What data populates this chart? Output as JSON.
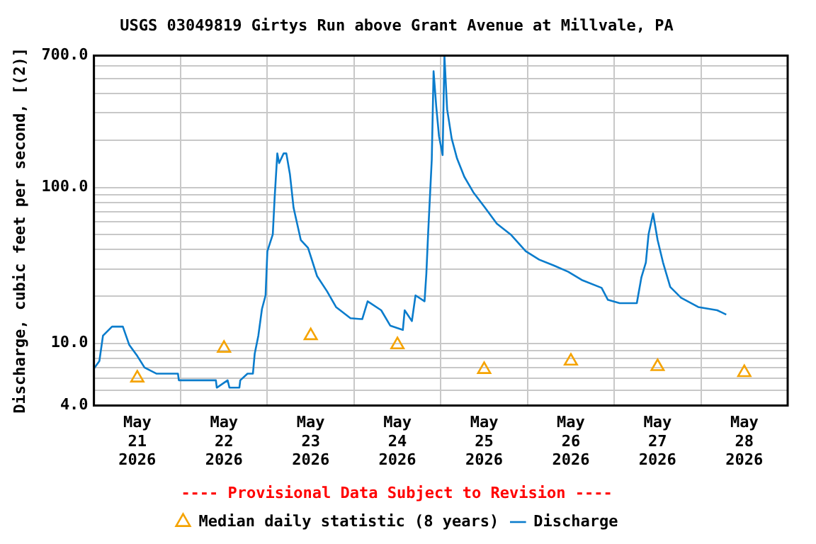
{
  "chart_data": {
    "type": "line",
    "title": "USGS 03049819 Girtys Run above Grant Avenue at Millvale, PA",
    "ylabel": "Discharge, cubic feet per second, [(2)]",
    "annotations": [
      "---- Provisional Data Subject to Revision ----"
    ],
    "log": "y",
    "grid": true,
    "legend": "bottom",
    "xlim": [
      "2026-05-21T00:00",
      "2026-05-29T00:00"
    ],
    "xticks": [
      {
        "value": "2026-05-21T00:00",
        "label": null
      },
      {
        "value": "2026-05-21T12:00",
        "label": "May 21 2026"
      },
      {
        "value": "2026-05-22T00:00",
        "label": null
      },
      {
        "value": "2026-05-22T12:00",
        "label": "May 22 2026"
      },
      {
        "value": "2026-05-23T00:00",
        "label": null
      },
      {
        "value": "2026-05-23T12:00",
        "label": "May 23 2026"
      },
      {
        "value": "2026-05-24T00:00",
        "label": null
      },
      {
        "value": "2026-05-24T12:00",
        "label": "May 24 2026"
      },
      {
        "value": "2026-05-25T00:00",
        "label": null
      },
      {
        "value": "2026-05-25T12:00",
        "label": "May 25 2026"
      },
      {
        "value": "2026-05-26T00:00",
        "label": null
      },
      {
        "value": "2026-05-26T12:00",
        "label": "May 26 2026"
      },
      {
        "value": "2026-05-27T00:00",
        "label": null
      },
      {
        "value": "2026-05-27T12:00",
        "label": "May 27 2026"
      },
      {
        "value": "2026-05-28T00:00",
        "label": null
      },
      {
        "value": "2026-05-28T12:00",
        "label": "May 28 2026"
      },
      {
        "value": "2026-05-29T00:00",
        "label": null
      }
    ],
    "ylim": [
      4,
      700
    ],
    "yticks": [
      {
        "value": 4,
        "label": "4.0"
      },
      {
        "value": 5,
        "label": null
      },
      {
        "value": 6,
        "label": null
      },
      {
        "value": 7,
        "label": null
      },
      {
        "value": 8,
        "label": null
      },
      {
        "value": 9,
        "label": null
      },
      {
        "value": 10,
        "label": "10.0"
      },
      {
        "value": 20,
        "label": null
      },
      {
        "value": 30,
        "label": null
      },
      {
        "value": 40,
        "label": null
      },
      {
        "value": 50,
        "label": null
      },
      {
        "value": 60,
        "label": null
      },
      {
        "value": 70,
        "label": null
      },
      {
        "value": 80,
        "label": null
      },
      {
        "value": 90,
        "label": null
      },
      {
        "value": 100,
        "label": "100.0"
      },
      {
        "value": 200,
        "label": null
      },
      {
        "value": 300,
        "label": null
      },
      {
        "value": 400,
        "label": null
      },
      {
        "value": 500,
        "label": null
      },
      {
        "value": 600,
        "label": null
      },
      {
        "value": 700,
        "label": "700.0"
      }
    ],
    "series": [
      {
        "name": "Median daily statistic (8 years)",
        "type": "scatter",
        "marker": "triangle",
        "color": "#f5a300",
        "x": [
          "2026-05-21T12:00",
          "2026-05-22T12:00",
          "2026-05-23T12:00",
          "2026-05-24T12:00",
          "2026-05-25T12:00",
          "2026-05-26T12:00",
          "2026-05-27T12:00",
          "2026-05-28T12:00"
        ],
        "values": [
          6.0,
          9.3,
          11.2,
          9.8,
          6.8,
          7.7,
          7.1,
          6.5
        ]
      },
      {
        "name": "Discharge",
        "type": "line",
        "marker": "none",
        "color": "#0a7ccc",
        "x": [
          "2026-05-21T00:00",
          "2026-05-21T01:30",
          "2026-05-21T02:30",
          "2026-05-21T05:00",
          "2026-05-21T08:00",
          "2026-05-21T09:45",
          "2026-05-21T12:00",
          "2026-05-21T14:00",
          "2026-05-21T17:15",
          "2026-05-21T23:15",
          "2026-05-21T23:30",
          "2026-05-22T09:45",
          "2026-05-22T10:00",
          "2026-05-22T13:00",
          "2026-05-22T13:30",
          "2026-05-22T16:15",
          "2026-05-22T16:30",
          "2026-05-22T18:30",
          "2026-05-22T20:00",
          "2026-05-22T20:30",
          "2026-05-22T21:30",
          "2026-05-22T22:30",
          "2026-05-22T23:30",
          "2026-05-23T00:00",
          "2026-05-23T01:30",
          "2026-05-23T02:00",
          "2026-05-23T02:45",
          "2026-05-23T03:15",
          "2026-05-23T04:30",
          "2026-05-23T05:15",
          "2026-05-23T06:15",
          "2026-05-23T07:15",
          "2026-05-23T09:15",
          "2026-05-23T11:15",
          "2026-05-23T13:45",
          "2026-05-23T16:30",
          "2026-05-23T19:00",
          "2026-05-23T23:00",
          "2026-05-24T02:15",
          "2026-05-24T03:45",
          "2026-05-24T07:30",
          "2026-05-24T10:00",
          "2026-05-24T13:30",
          "2026-05-24T14:00",
          "2026-05-24T16:00",
          "2026-05-24T17:00",
          "2026-05-24T19:30",
          "2026-05-24T20:00",
          "2026-05-24T20:30",
          "2026-05-24T21:30",
          "2026-05-24T22:00",
          "2026-05-24T22:45",
          "2026-05-24T23:30",
          "2026-05-25T00:30",
          "2026-05-25T01:00",
          "2026-05-25T01:45",
          "2026-05-25T03:00",
          "2026-05-25T04:30",
          "2026-05-25T06:30",
          "2026-05-25T09:00",
          "2026-05-25T12:15",
          "2026-05-25T15:30",
          "2026-05-25T19:30",
          "2026-05-25T23:30",
          "2026-05-26T03:15",
          "2026-05-26T07:15",
          "2026-05-26T11:15",
          "2026-05-26T15:00",
          "2026-05-26T20:30",
          "2026-05-26T22:15",
          "2026-05-27T01:30",
          "2026-05-27T06:15",
          "2026-05-27T07:30",
          "2026-05-27T08:45",
          "2026-05-27T09:30",
          "2026-05-27T10:45",
          "2026-05-27T12:00",
          "2026-05-27T13:30",
          "2026-05-27T15:30",
          "2026-05-27T18:30",
          "2026-05-27T23:15",
          "2026-05-28T04:30",
          "2026-05-28T07:00"
        ],
        "values": [
          6.9,
          7.7,
          11.2,
          12.8,
          12.8,
          9.8,
          8.3,
          7.0,
          6.4,
          6.4,
          5.8,
          5.8,
          5.2,
          5.8,
          5.2,
          5.2,
          5.8,
          6.4,
          6.4,
          8.6,
          11.2,
          16.6,
          20.3,
          39,
          50,
          85,
          165,
          143,
          165,
          165,
          121,
          74,
          46,
          41,
          27,
          21.6,
          17.1,
          14.5,
          14.3,
          18.6,
          16.3,
          13.0,
          12.2,
          16.3,
          13.9,
          20.3,
          18.6,
          28,
          51,
          151,
          555,
          327,
          213,
          161,
          700,
          317,
          206,
          153,
          117,
          93,
          74,
          58.5,
          49.5,
          39,
          34.4,
          31.6,
          28.8,
          25.5,
          22.7,
          19.0,
          18.1,
          18.1,
          26.4,
          33,
          50,
          68,
          46,
          33,
          23,
          19.6,
          17.1,
          16.3,
          15.3
        ]
      }
    ]
  }
}
